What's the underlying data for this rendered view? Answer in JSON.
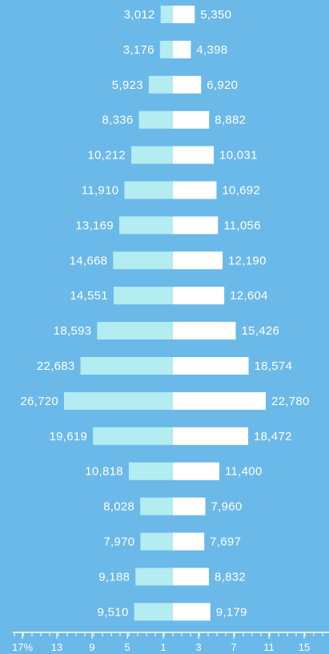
{
  "chart_data": {
    "type": "bar",
    "orientation": "horizontal",
    "layout": "population-pyramid",
    "colors": {
      "background": "#6bb9e8",
      "left": "#b3ecf1",
      "right": "#ffffff",
      "axis": "#ffffff"
    },
    "series": [
      {
        "values": [
          3012,
          3176,
          5923,
          8336,
          10212,
          11910,
          13169,
          14668,
          14551,
          18593,
          22683,
          26720,
          19619,
          10818,
          8028,
          7970,
          9188,
          9510
        ],
        "labels": [
          "3,012",
          "3,176",
          "5,923",
          "8,336",
          "10,212",
          "11,910",
          "13,169",
          "14,668",
          "14,551",
          "18,593",
          "22,683",
          "26,720",
          "19,619",
          "10,818",
          "8,028",
          "7,970",
          "9,188",
          "9,510"
        ]
      },
      {
        "values": [
          5350,
          4398,
          6920,
          8882,
          10031,
          10692,
          11056,
          12190,
          12604,
          15426,
          18574,
          22780,
          18472,
          11400,
          7960,
          7697,
          8832,
          9179
        ],
        "labels": [
          "5,350",
          "4,398",
          "6,920",
          "8,882",
          "10,031",
          "10,692",
          "11,056",
          "12,190",
          "12,604",
          "15,426",
          "18,574",
          "22,780",
          "18,472",
          "11,400",
          "7,960",
          "7,697",
          "8,832",
          "9,179"
        ]
      }
    ],
    "x_ticks": [
      "17%",
      "13",
      "9",
      "5",
      "1",
      "3",
      "7",
      "11",
      "15"
    ]
  }
}
